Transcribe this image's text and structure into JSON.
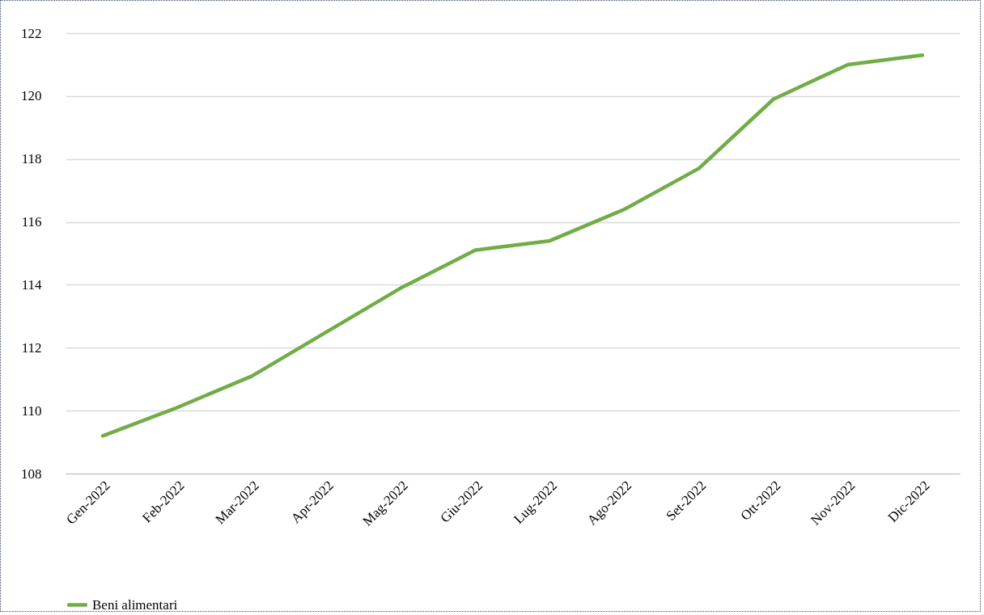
{
  "chart_data": {
    "type": "line",
    "categories": [
      "Gen-2022",
      "Feb-2022",
      "Mar-2022",
      "Apr-2022",
      "Mag-2022",
      "Giu-2022",
      "Lug-2022",
      "Ago-2022",
      "Set-2022",
      "Ott-2022",
      "Nov-2022",
      "Dic-2022"
    ],
    "series": [
      {
        "name": "Beni alimentari",
        "color": "#70ad47",
        "values": [
          109.2,
          110.1,
          111.1,
          112.5,
          113.9,
          115.1,
          115.4,
          116.4,
          117.7,
          119.9,
          121.0,
          121.3
        ]
      }
    ],
    "ylim": [
      108,
      122
    ],
    "yticks": [
      108,
      110,
      112,
      114,
      116,
      118,
      120,
      122
    ],
    "grid": "y",
    "legend": "bottom",
    "marker": "none",
    "line_style": "solid"
  }
}
